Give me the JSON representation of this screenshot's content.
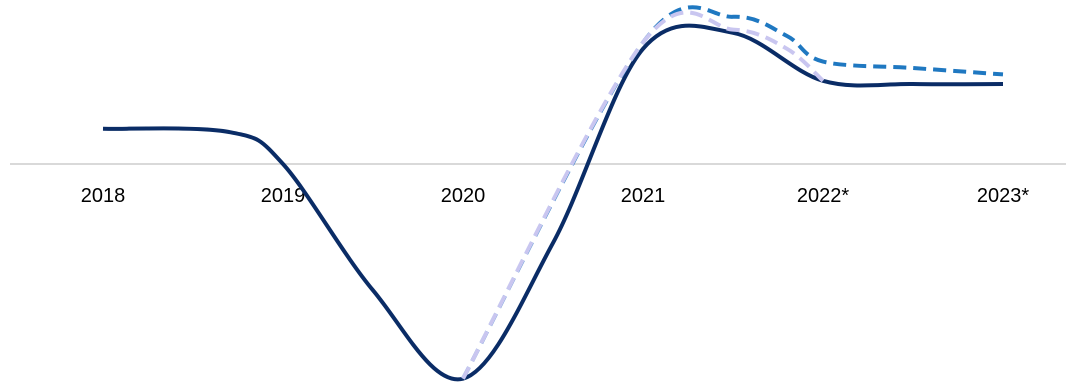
{
  "chart_data": {
    "type": "line",
    "title": "",
    "xlabel": "",
    "ylabel": "",
    "categories": [
      "2018",
      "2019",
      "2020",
      "2021",
      "2022*",
      "2023*"
    ],
    "ylim": [
      -7,
      4.5
    ],
    "grid": false,
    "legend": "none",
    "series": [
      {
        "x": [
          0,
          0.7,
          1,
          1.5,
          2,
          2.5,
          3,
          3.5,
          4,
          4.5,
          5
        ],
        "values": [
          1.1,
          1.0,
          0.0,
          -4.0,
          -6.8,
          -2.5,
          3.6,
          4.1,
          2.6,
          2.5,
          2.5
        ],
        "color": "#0a2c66",
        "dash": "solid",
        "width": 4
      },
      {
        "x": [
          2,
          3,
          3.5,
          3.8,
          4,
          4.5,
          5
        ],
        "values": [
          -6.8,
          3.8,
          4.6,
          4.0,
          3.2,
          3.0,
          2.8
        ],
        "color": "#1f78c1",
        "dash": "dashed",
        "width": 4
      },
      {
        "x": [
          2,
          3,
          3.5,
          3.8,
          4
        ],
        "values": [
          -6.8,
          3.8,
          4.2,
          3.6,
          2.6
        ],
        "color": "#c9c6f0",
        "dash": "dashed",
        "width": 4
      }
    ]
  }
}
